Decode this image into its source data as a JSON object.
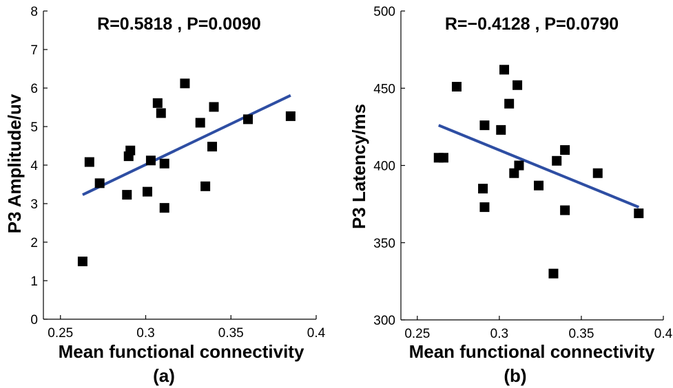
{
  "chart_data": [
    {
      "type": "scatter",
      "title": "R=0.5818 , P=0.0090",
      "xlabel": "Mean functional connectivity",
      "ylabel": "P3 Amplitude/uv",
      "panel_label": "(a)",
      "xlim": [
        0.24,
        0.4
      ],
      "ylim": [
        0,
        8
      ],
      "x_ticks": [
        "0.25",
        "0.3",
        "0.35",
        "0.4"
      ],
      "y_ticks": [
        "0",
        "1",
        "2",
        "3",
        "4",
        "5",
        "6",
        "7",
        "8"
      ],
      "points": [
        {
          "x": 0.263,
          "y": 1.5
        },
        {
          "x": 0.267,
          "y": 4.08
        },
        {
          "x": 0.273,
          "y": 3.53
        },
        {
          "x": 0.289,
          "y": 3.23
        },
        {
          "x": 0.29,
          "y": 4.23
        },
        {
          "x": 0.291,
          "y": 4.38
        },
        {
          "x": 0.301,
          "y": 3.31
        },
        {
          "x": 0.303,
          "y": 4.12
        },
        {
          "x": 0.307,
          "y": 5.61
        },
        {
          "x": 0.309,
          "y": 5.35
        },
        {
          "x": 0.311,
          "y": 4.04
        },
        {
          "x": 0.311,
          "y": 2.89
        },
        {
          "x": 0.323,
          "y": 6.12
        },
        {
          "x": 0.332,
          "y": 5.1
        },
        {
          "x": 0.335,
          "y": 3.45
        },
        {
          "x": 0.339,
          "y": 4.48
        },
        {
          "x": 0.34,
          "y": 5.51
        },
        {
          "x": 0.36,
          "y": 5.19
        },
        {
          "x": 0.385,
          "y": 5.27
        }
      ],
      "fit_line": {
        "x": [
          0.263,
          0.385
        ],
        "y": [
          3.23,
          5.81
        ]
      },
      "marker_color": "#000000",
      "line_color": "#2e4ea3"
    },
    {
      "type": "scatter",
      "title": "R=−0.4128 , P=0.0790",
      "xlabel": "Mean functional connectivity",
      "ylabel": "P3 Latency/ms",
      "panel_label": "(b)",
      "xlim": [
        0.24,
        0.4
      ],
      "ylim": [
        300,
        500
      ],
      "x_ticks": [
        "0.25",
        "0.3",
        "0.35",
        "0.4"
      ],
      "y_ticks": [
        "300",
        "350",
        "400",
        "450",
        "500"
      ],
      "points": [
        {
          "x": 0.263,
          "y": 405
        },
        {
          "x": 0.266,
          "y": 405
        },
        {
          "x": 0.274,
          "y": 451
        },
        {
          "x": 0.29,
          "y": 385
        },
        {
          "x": 0.291,
          "y": 426
        },
        {
          "x": 0.291,
          "y": 373
        },
        {
          "x": 0.301,
          "y": 423
        },
        {
          "x": 0.303,
          "y": 462
        },
        {
          "x": 0.306,
          "y": 440
        },
        {
          "x": 0.309,
          "y": 395
        },
        {
          "x": 0.311,
          "y": 452
        },
        {
          "x": 0.312,
          "y": 400
        },
        {
          "x": 0.324,
          "y": 387
        },
        {
          "x": 0.333,
          "y": 330
        },
        {
          "x": 0.335,
          "y": 403
        },
        {
          "x": 0.34,
          "y": 410
        },
        {
          "x": 0.34,
          "y": 371
        },
        {
          "x": 0.36,
          "y": 395
        },
        {
          "x": 0.385,
          "y": 369
        }
      ],
      "fit_line": {
        "x": [
          0.263,
          0.385
        ],
        "y": [
          426,
          373
        ]
      },
      "marker_color": "#000000",
      "line_color": "#2e4ea3"
    }
  ]
}
